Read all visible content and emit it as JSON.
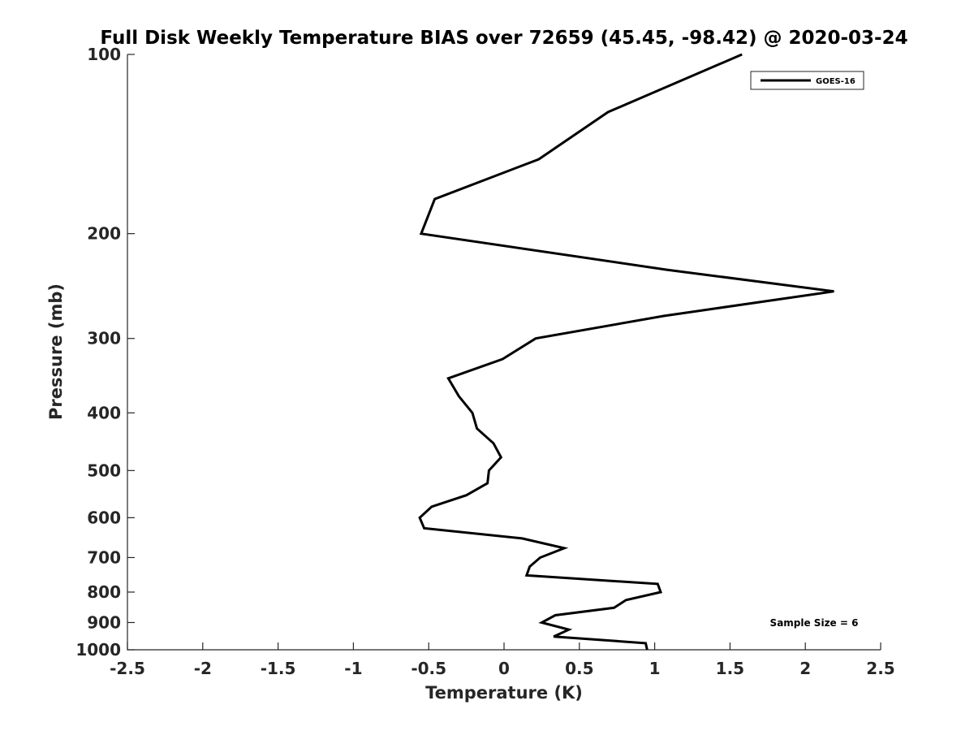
{
  "chart_data": {
    "type": "line",
    "title": "Full Disk Weekly Temperature BIAS over 72659 (45.45, -98.42) @ 2020-03-24",
    "xlabel": "Temperature (K)",
    "ylabel": "Pressure (mb)",
    "xlim": [
      -2.5,
      2.5
    ],
    "ylim": [
      100,
      1000
    ],
    "y_scale": "log",
    "y_reversed": true,
    "x_ticks": [
      -2.5,
      -2,
      -1.5,
      -1,
      -0.5,
      0,
      0.5,
      1,
      1.5,
      2,
      2.5
    ],
    "x_tick_labels": [
      "-2.5",
      "-2",
      "-1.5",
      "-1",
      "-0.5",
      "0",
      "0.5",
      "1",
      "1.5",
      "2",
      "2.5"
    ],
    "y_ticks": [
      100,
      200,
      300,
      400,
      500,
      600,
      700,
      800,
      900,
      1000
    ],
    "y_tick_labels": [
      "100",
      "200",
      "300",
      "400",
      "500",
      "600",
      "700",
      "800",
      "900",
      "1000"
    ],
    "grid": false,
    "legend_position": "top-right",
    "series": [
      {
        "name": "GOES-16",
        "color": "#000000",
        "points": [
          {
            "x": 1.58,
            "p": 100
          },
          {
            "x": 0.69,
            "p": 125
          },
          {
            "x": 0.23,
            "p": 150
          },
          {
            "x": -0.46,
            "p": 175
          },
          {
            "x": -0.55,
            "p": 200
          },
          {
            "x": 1.08,
            "p": 230
          },
          {
            "x": 2.19,
            "p": 250
          },
          {
            "x": 1.06,
            "p": 275
          },
          {
            "x": 0.21,
            "p": 300
          },
          {
            "x": -0.01,
            "p": 325
          },
          {
            "x": -0.37,
            "p": 350
          },
          {
            "x": -0.3,
            "p": 375
          },
          {
            "x": -0.21,
            "p": 400
          },
          {
            "x": -0.18,
            "p": 425
          },
          {
            "x": -0.07,
            "p": 450
          },
          {
            "x": -0.02,
            "p": 475
          },
          {
            "x": -0.1,
            "p": 500
          },
          {
            "x": -0.11,
            "p": 525
          },
          {
            "x": -0.25,
            "p": 550
          },
          {
            "x": -0.48,
            "p": 575
          },
          {
            "x": -0.56,
            "p": 600
          },
          {
            "x": -0.53,
            "p": 625
          },
          {
            "x": 0.12,
            "p": 650
          },
          {
            "x": 0.4,
            "p": 675
          },
          {
            "x": 0.24,
            "p": 700
          },
          {
            "x": 0.17,
            "p": 725
          },
          {
            "x": 0.15,
            "p": 750
          },
          {
            "x": 1.02,
            "p": 775
          },
          {
            "x": 1.04,
            "p": 800
          },
          {
            "x": 0.81,
            "p": 825
          },
          {
            "x": 0.73,
            "p": 850
          },
          {
            "x": 0.34,
            "p": 875
          },
          {
            "x": 0.25,
            "p": 900
          },
          {
            "x": 0.43,
            "p": 925
          },
          {
            "x": 0.33,
            "p": 950
          },
          {
            "x": 0.94,
            "p": 975
          },
          {
            "x": 0.95,
            "p": 1000
          }
        ]
      }
    ],
    "annotations": [
      "Sample Size = 6"
    ]
  }
}
